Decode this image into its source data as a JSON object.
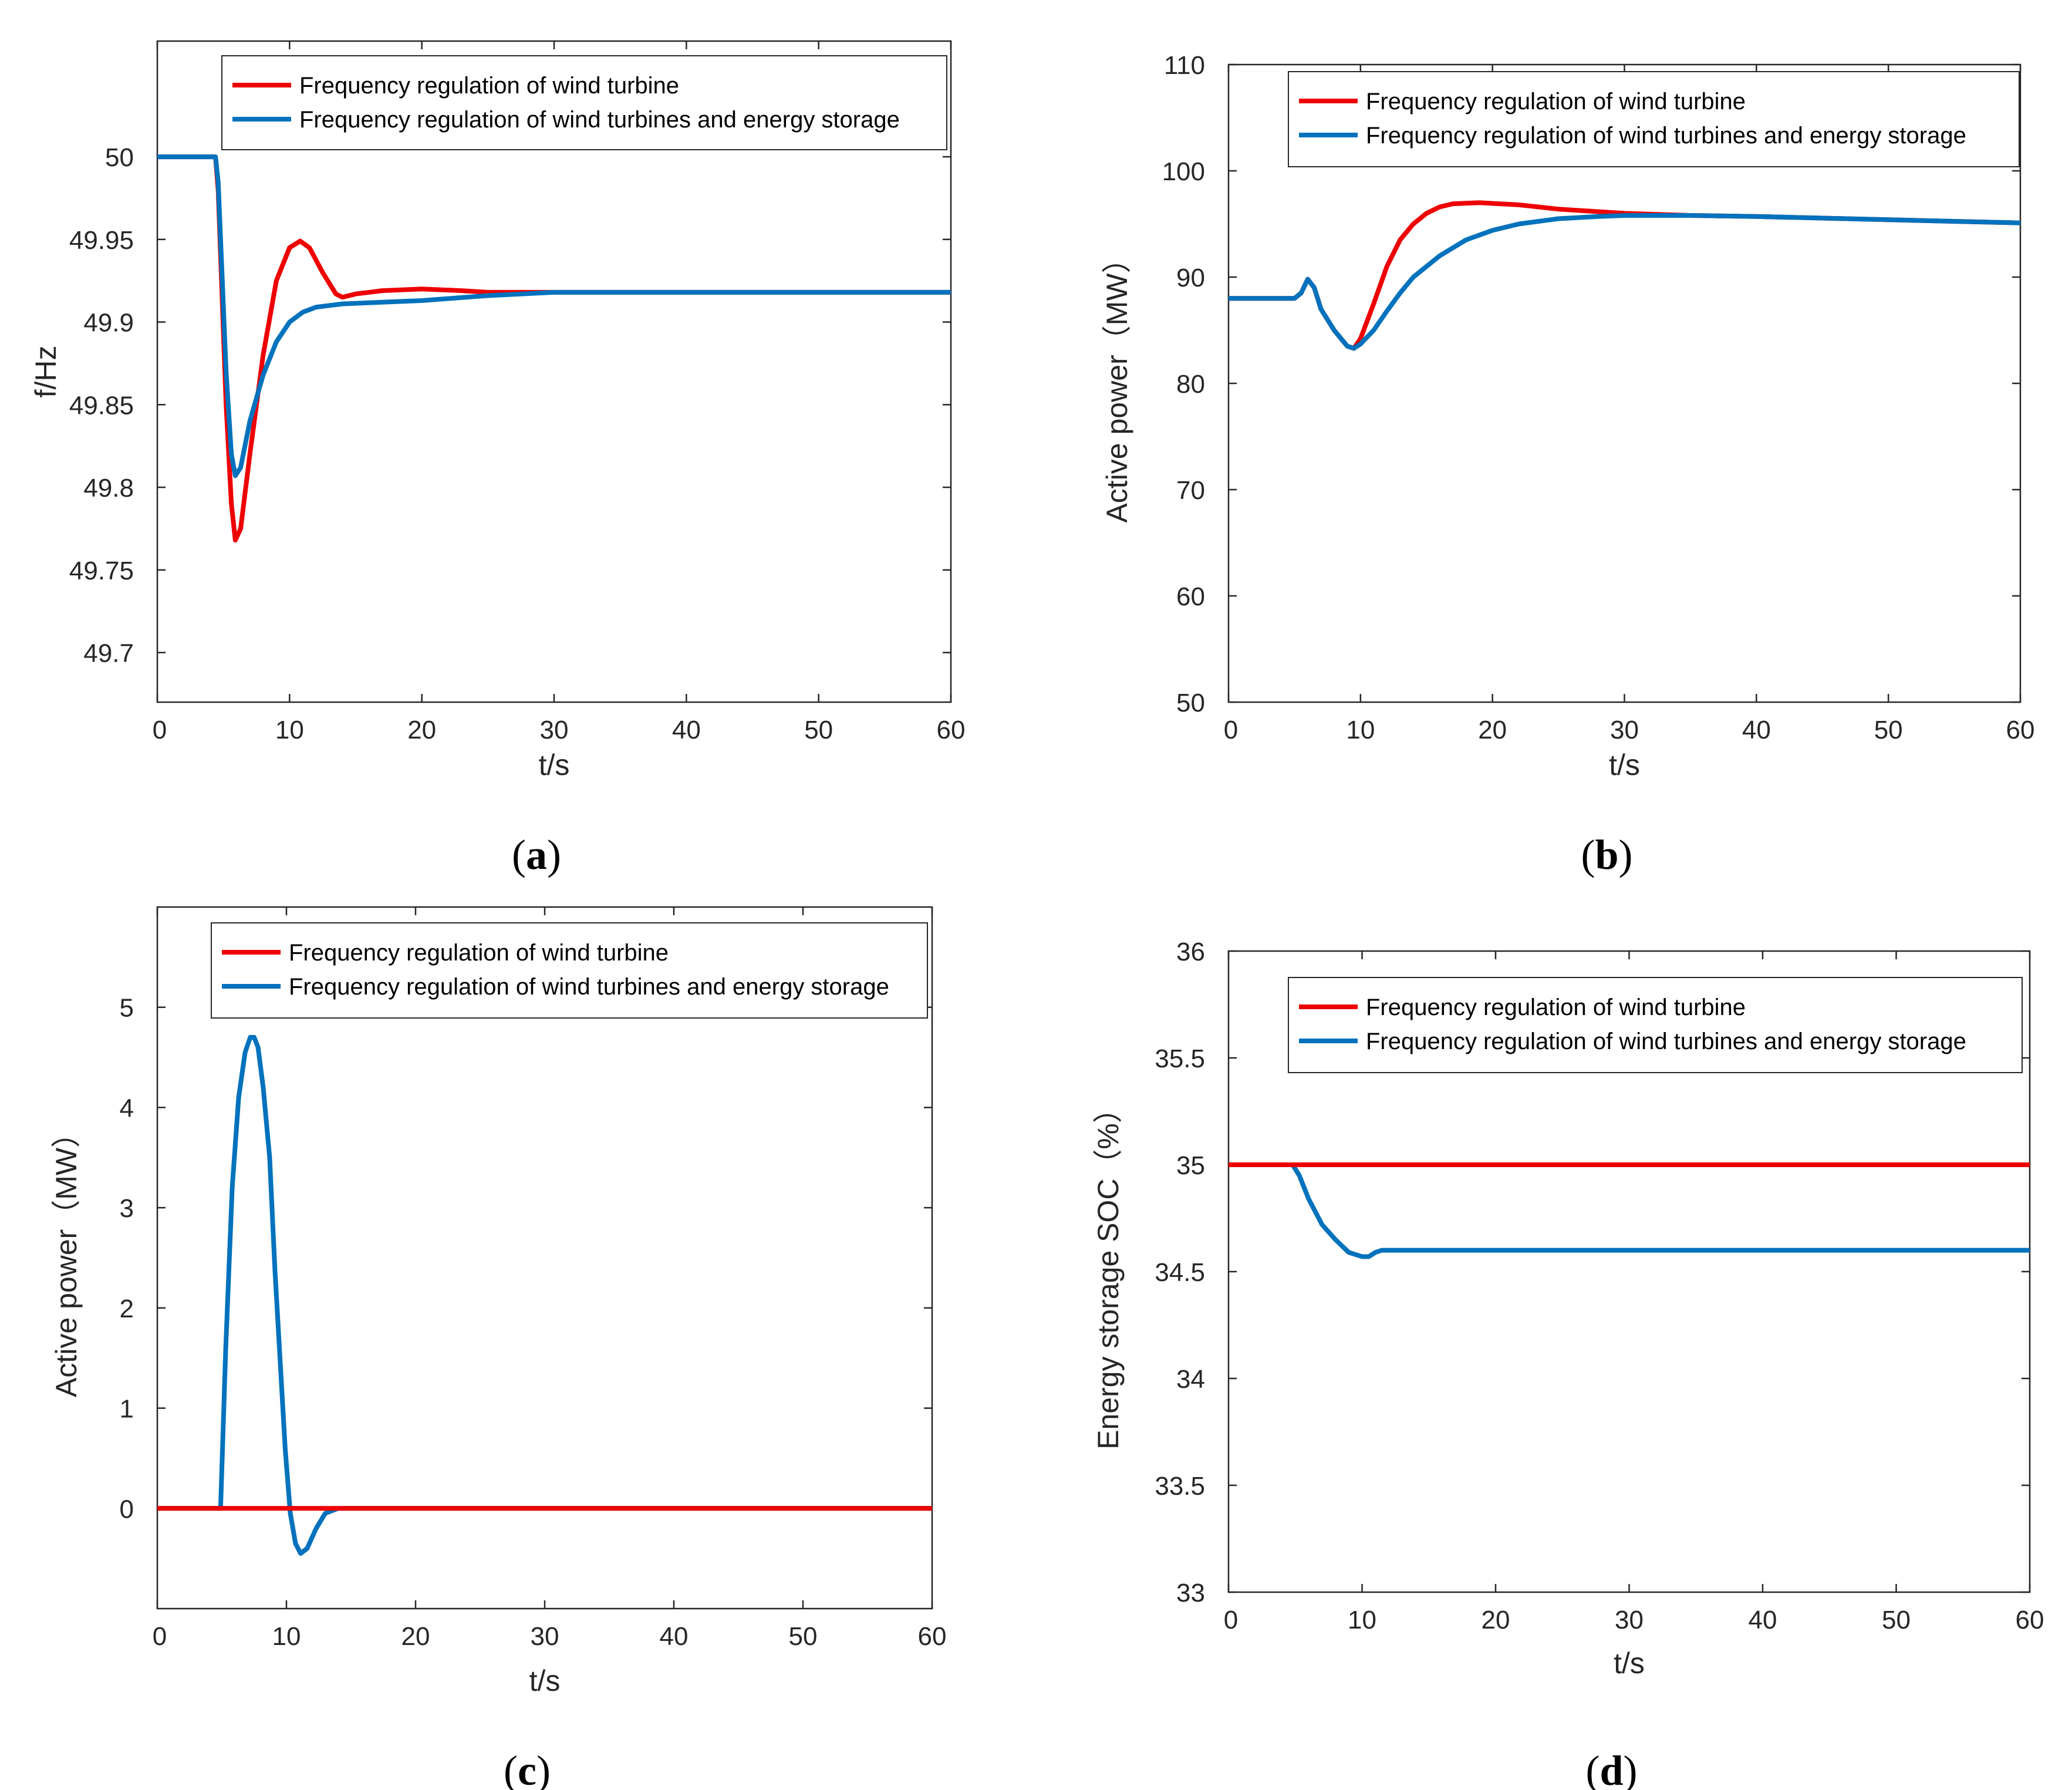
{
  "colors": {
    "wind": "#ee0000",
    "storage": "#0072bd",
    "axis": "#262626"
  },
  "chart_data": [
    {
      "id": "a",
      "type": "line",
      "caption": "a",
      "xlabel": "t/s",
      "ylabel": "f/Hz",
      "xlim": [
        0,
        60
      ],
      "ylim": [
        49.67,
        50.07
      ],
      "xticks": [
        0,
        10,
        20,
        30,
        40,
        50,
        60
      ],
      "yticks": [
        49.7,
        49.75,
        49.8,
        49.85,
        49.9,
        49.95,
        50
      ],
      "ytick_labels": [
        "49.7",
        "49.75",
        "49.8",
        "49.85",
        "49.9",
        "49.95",
        "50"
      ],
      "legend": [
        "Frequency regulation of wind turbine",
        "Frequency regulation of wind turbines and energy storage"
      ],
      "legend_position": "top-right",
      "series": [
        {
          "name": "Frequency regulation of wind turbine",
          "color_key": "wind",
          "x": [
            0,
            4.4,
            4.6,
            5.2,
            5.6,
            5.9,
            6.3,
            7,
            8,
            9,
            10,
            10.8,
            11.5,
            12.5,
            13.5,
            14,
            15,
            17,
            20,
            23,
            25,
            30,
            40,
            50,
            60
          ],
          "y": [
            50,
            50,
            49.98,
            49.85,
            49.79,
            49.768,
            49.775,
            49.82,
            49.88,
            49.925,
            49.945,
            49.949,
            49.945,
            49.93,
            49.917,
            49.915,
            49.917,
            49.919,
            49.92,
            49.919,
            49.918,
            49.918,
            49.918,
            49.918,
            49.918
          ]
        },
        {
          "name": "Frequency regulation of wind turbines and energy storage",
          "color_key": "storage",
          "x": [
            0,
            4.4,
            4.6,
            5.2,
            5.6,
            5.9,
            6.3,
            7,
            8,
            9,
            10,
            11,
            12,
            14,
            17,
            20,
            25,
            30,
            35,
            40,
            50,
            60
          ],
          "y": [
            50,
            50,
            49.985,
            49.87,
            49.82,
            49.807,
            49.812,
            49.84,
            49.868,
            49.888,
            49.9,
            49.906,
            49.909,
            49.911,
            49.912,
            49.913,
            49.916,
            49.918,
            49.918,
            49.918,
            49.918,
            49.918
          ]
        }
      ]
    },
    {
      "id": "b",
      "type": "line",
      "caption": "b",
      "xlabel": "t/s",
      "ylabel": "Active power（MW）",
      "xlim": [
        0,
        60
      ],
      "ylim": [
        50,
        110
      ],
      "xticks": [
        0,
        10,
        20,
        30,
        40,
        50,
        60
      ],
      "yticks": [
        50,
        60,
        70,
        80,
        90,
        100,
        110
      ],
      "ytick_labels": [
        "50",
        "60",
        "70",
        "80",
        "90",
        "100",
        "110"
      ],
      "legend": [
        "Frequency regulation of wind turbine",
        "Frequency regulation of wind turbines and energy storage"
      ],
      "legend_position": "top-right",
      "series": [
        {
          "name": "Frequency regulation of wind turbine",
          "color_key": "wind",
          "x": [
            0,
            5,
            5.5,
            6,
            6.5,
            7,
            8,
            9,
            9.5,
            10,
            11,
            12,
            13,
            14,
            15,
            16,
            17,
            19,
            22,
            25,
            30,
            35,
            40,
            50,
            60
          ],
          "y": [
            88,
            88,
            88.5,
            89.8,
            89,
            87,
            85,
            83.5,
            83.3,
            84.2,
            87.5,
            91,
            93.5,
            95,
            96,
            96.6,
            96.9,
            97,
            96.8,
            96.4,
            96,
            95.8,
            95.7,
            95.4,
            95.1
          ]
        },
        {
          "name": "Frequency regulation of wind turbines and energy storage",
          "color_key": "storage",
          "x": [
            0,
            5,
            5.5,
            6,
            6.5,
            7,
            8,
            9,
            9.5,
            10,
            11,
            12,
            13,
            14,
            16,
            18,
            20,
            22,
            25,
            28,
            30,
            35,
            40,
            50,
            60
          ],
          "y": [
            88,
            88,
            88.5,
            89.8,
            89,
            87,
            85,
            83.5,
            83.3,
            83.7,
            85,
            86.8,
            88.5,
            90,
            92,
            93.5,
            94.4,
            95,
            95.5,
            95.7,
            95.8,
            95.8,
            95.7,
            95.4,
            95.1
          ]
        }
      ]
    },
    {
      "id": "c",
      "type": "line",
      "caption": "c",
      "xlabel": "t/s",
      "ylabel": "Active power（MW）",
      "xlim": [
        0,
        60
      ],
      "ylim": [
        -1,
        6
      ],
      "xticks": [
        0,
        10,
        20,
        30,
        40,
        50,
        60
      ],
      "yticks": [
        0,
        1,
        2,
        3,
        4,
        5
      ],
      "ytick_labels": [
        "0",
        "1",
        "2",
        "3",
        "4",
        "5"
      ],
      "legend": [
        "Frequency regulation of wind turbine",
        "Frequency regulation of wind turbines and energy storage"
      ],
      "legend_position": "top-right",
      "series": [
        {
          "name": "Frequency regulation of wind turbines and energy storage",
          "color_key": "storage",
          "x": [
            0,
            4.9,
            5.3,
            5.8,
            6.3,
            6.8,
            7.2,
            7.5,
            7.8,
            8.2,
            8.7,
            9.1,
            9.5,
            9.9,
            10.3,
            10.7,
            11.1,
            11.6,
            12.3,
            13,
            14,
            20,
            30,
            40,
            50,
            60
          ],
          "y": [
            0,
            0,
            1.6,
            3.2,
            4.1,
            4.55,
            4.7,
            4.7,
            4.6,
            4.2,
            3.5,
            2.4,
            1.5,
            0.6,
            -0.05,
            -0.35,
            -0.45,
            -0.4,
            -0.2,
            -0.05,
            0,
            0,
            0,
            0,
            0,
            0
          ]
        },
        {
          "name": "Frequency regulation of wind turbine",
          "color_key": "wind",
          "x": [
            0,
            60
          ],
          "y": [
            0,
            0
          ]
        }
      ]
    },
    {
      "id": "d",
      "type": "line",
      "caption": "d",
      "xlabel": "t/s",
      "ylabel": "Energy storage SOC（%）",
      "xlim": [
        0,
        60
      ],
      "ylim": [
        33,
        36
      ],
      "xticks": [
        0,
        10,
        20,
        30,
        40,
        50,
        60
      ],
      "yticks": [
        33,
        33.5,
        34,
        34.5,
        35,
        35.5,
        36
      ],
      "ytick_labels": [
        "33",
        "33.5",
        "34",
        "34.5",
        "35",
        "35.5",
        "36"
      ],
      "legend": [
        "Frequency regulation of wind turbine",
        "Frequency regulation of wind turbines and energy storage"
      ],
      "legend_position": "top-right",
      "series": [
        {
          "name": "Frequency regulation of wind turbines and energy storage",
          "color_key": "storage",
          "x": [
            0,
            4.8,
            5.3,
            6,
            7,
            8,
            9,
            10,
            10.5,
            11,
            11.5,
            12,
            15,
            20,
            30,
            40,
            50,
            60
          ],
          "y": [
            35,
            35,
            34.95,
            34.84,
            34.72,
            34.65,
            34.59,
            34.57,
            34.57,
            34.59,
            34.6,
            34.6,
            34.6,
            34.6,
            34.6,
            34.6,
            34.6,
            34.6
          ]
        },
        {
          "name": "Frequency regulation of wind turbine",
          "color_key": "wind",
          "x": [
            0,
            60
          ],
          "y": [
            35,
            35
          ]
        }
      ]
    }
  ]
}
